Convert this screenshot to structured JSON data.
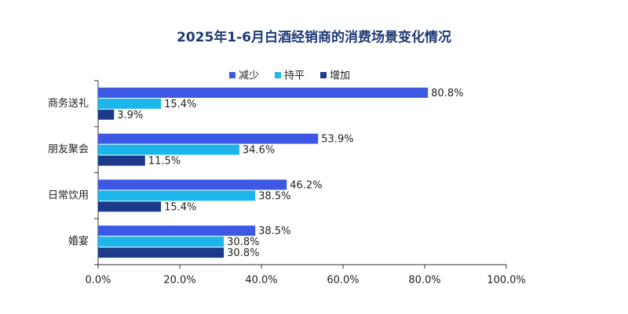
{
  "chart_data": {
    "type": "hbar",
    "title": "2025年1-6月白酒经销商的消费场景变化情况",
    "categories": [
      "商务送礼",
      "朋友聚会",
      "日常饮用",
      "婚宴"
    ],
    "series": [
      {
        "name": "减少",
        "color": "#3d58e3",
        "values": [
          80.8,
          53.9,
          46.2,
          38.5
        ],
        "value_labels": [
          "80.8%",
          "53.9%",
          "46.2%",
          "38.5%"
        ]
      },
      {
        "name": "持平",
        "color": "#1cb6ea",
        "values": [
          15.4,
          34.6,
          38.5,
          30.8
        ],
        "value_labels": [
          "15.4%",
          "34.6%",
          "38.5%",
          "30.8%"
        ]
      },
      {
        "name": "增加",
        "color": "#1b3a8c",
        "values": [
          3.9,
          11.5,
          15.4,
          30.8
        ],
        "value_labels": [
          "3.9%",
          "11.5%",
          "15.4%",
          "30.8%"
        ]
      }
    ],
    "xlim": [
      0,
      100
    ],
    "xticks": [
      {
        "value": 0,
        "label": "0.0%"
      },
      {
        "value": 20,
        "label": "20.0%"
      },
      {
        "value": 40,
        "label": "40.0%"
      },
      {
        "value": 60,
        "label": "60.0%"
      },
      {
        "value": 80,
        "label": "80.0%"
      },
      {
        "value": 100,
        "label": "100.0%"
      }
    ],
    "legend": "top"
  }
}
